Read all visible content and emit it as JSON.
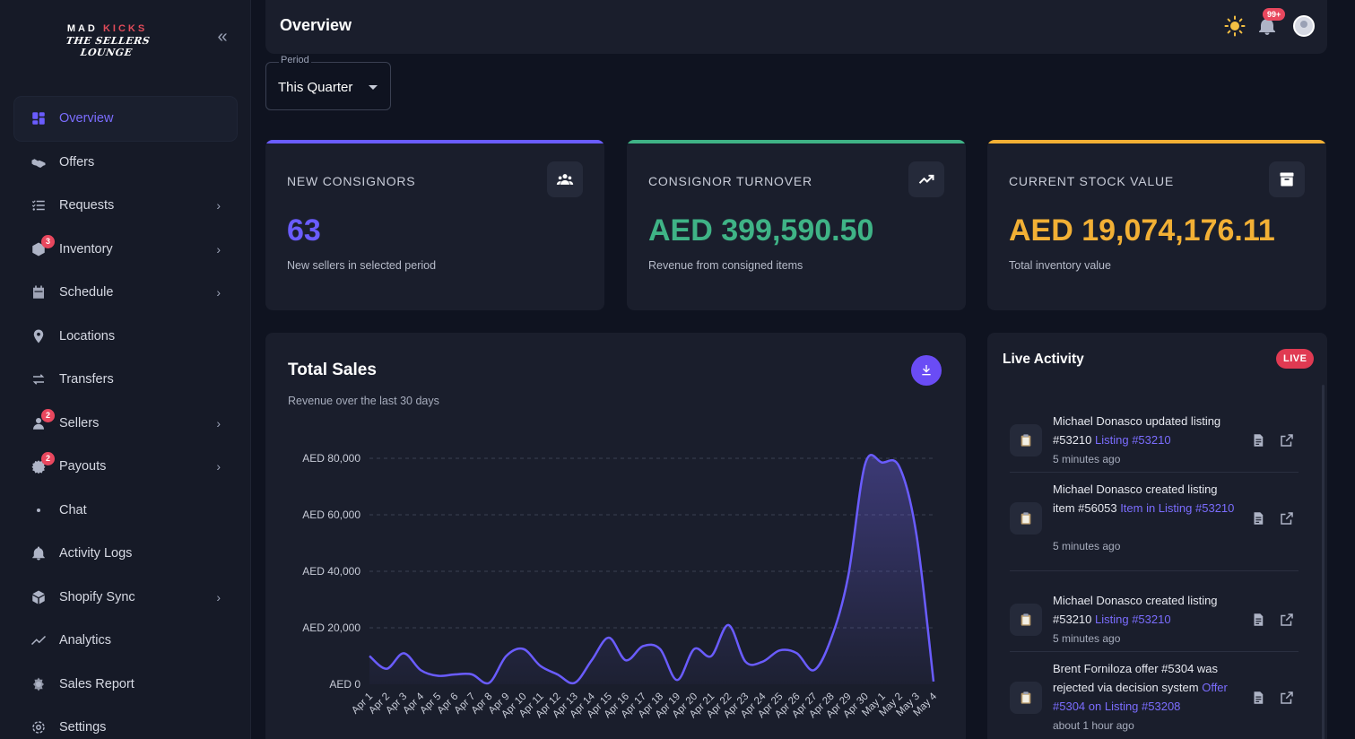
{
  "sidebar": {
    "logo_top": "MAD",
    "logo_kicks": "KICKS",
    "logo_sub": "THE SELLERS LOUNGE",
    "items": [
      {
        "label": "Overview",
        "icon": "grid-icon"
      },
      {
        "label": "Offers",
        "icon": "handshake-icon"
      },
      {
        "label": "Requests",
        "icon": "list-icon",
        "chevron": true
      },
      {
        "label": "Inventory",
        "icon": "box-icon",
        "chevron": true,
        "badge": "3"
      },
      {
        "label": "Schedule",
        "icon": "calendar-icon",
        "chevron": true
      },
      {
        "label": "Locations",
        "icon": "pin-icon"
      },
      {
        "label": "Transfers",
        "icon": "swap-icon"
      },
      {
        "label": "Sellers",
        "icon": "user-icon",
        "chevron": true,
        "badge": "2"
      },
      {
        "label": "Payouts",
        "icon": "money-icon",
        "chevron": true,
        "badge": "2"
      },
      {
        "label": "Chat",
        "icon": "dot-icon"
      },
      {
        "label": "Activity Logs",
        "icon": "bell-icon"
      },
      {
        "label": "Shopify Sync",
        "icon": "cube-icon",
        "chevron": true
      },
      {
        "label": "Analytics",
        "icon": "trend-icon"
      },
      {
        "label": "Sales Report",
        "icon": "report-icon"
      },
      {
        "label": "Settings",
        "icon": "gear-icon"
      }
    ]
  },
  "header": {
    "title": "Overview",
    "notif_badge": "99+"
  },
  "period": {
    "label": "Period",
    "value": "This Quarter"
  },
  "cards": [
    {
      "title": "NEW CONSIGNORS",
      "value": "63",
      "sub": "New sellers in selected period",
      "color": "#6a5cff",
      "icon": "users-icon"
    },
    {
      "title": "CONSIGNOR TURNOVER",
      "value": "AED 399,590.50",
      "sub": "Revenue from consigned items",
      "color": "#3fb386",
      "icon": "trend-up-icon"
    },
    {
      "title": "CURRENT STOCK VALUE",
      "value": "AED 19,074,176.11",
      "sub": "Total inventory value",
      "color": "#f2b035",
      "icon": "archive-icon"
    }
  ],
  "sales": {
    "title": "Total Sales",
    "subtitle": "Revenue over the last 30 days"
  },
  "chart_data": {
    "type": "area",
    "title": "Total Sales",
    "subtitle": "Revenue over the last 30 days",
    "ylim": [
      0,
      80000
    ],
    "yticks": [
      "AED 0",
      "AED 20,000",
      "AED 40,000",
      "AED 60,000",
      "AED 80,000"
    ],
    "grid": true,
    "categories": [
      "Apr 1",
      "Apr 2",
      "Apr 3",
      "Apr 4",
      "Apr 5",
      "Apr 6",
      "Apr 7",
      "Apr 8",
      "Apr 9",
      "Apr 10",
      "Apr 11",
      "Apr 12",
      "Apr 13",
      "Apr 14",
      "Apr 15",
      "Apr 16",
      "Apr 17",
      "Apr 18",
      "Apr 19",
      "Apr 20",
      "Apr 21",
      "Apr 22",
      "Apr 23",
      "Apr 24",
      "Apr 25",
      "Apr 26",
      "Apr 27",
      "Apr 28",
      "Apr 29",
      "Apr 30",
      "May 1",
      "May 2",
      "May 3",
      "May 4"
    ],
    "series": [
      {
        "values": [
          10000,
          5500,
          11000,
          5000,
          3000,
          3500,
          3500,
          500,
          10000,
          12500,
          6500,
          3500,
          500,
          8500,
          16500,
          8500,
          13500,
          12500,
          1500,
          12500,
          10000,
          21000,
          8000,
          8000,
          12000,
          11000,
          5000,
          16000,
          38000,
          78000,
          78500,
          77000,
          53000,
          1000
        ]
      }
    ]
  },
  "live": {
    "title": "Live Activity",
    "badge": "LIVE",
    "items": [
      {
        "text": "Michael Donasco updated listing #53210",
        "link": "Listing #53210",
        "time": "5 minutes ago"
      },
      {
        "text": "Michael Donasco created listing item #56053",
        "link": "Item in Listing #53210",
        "time": "5 minutes ago"
      },
      {
        "text": "Michael Donasco created listing #53210",
        "link": "Listing #53210",
        "time": "5 minutes ago"
      },
      {
        "text": "Brent Forniloza offer #5304 was rejected via decision system",
        "link": "Offer #5304 on Listing #53208",
        "time": "about 1 hour ago"
      }
    ]
  }
}
